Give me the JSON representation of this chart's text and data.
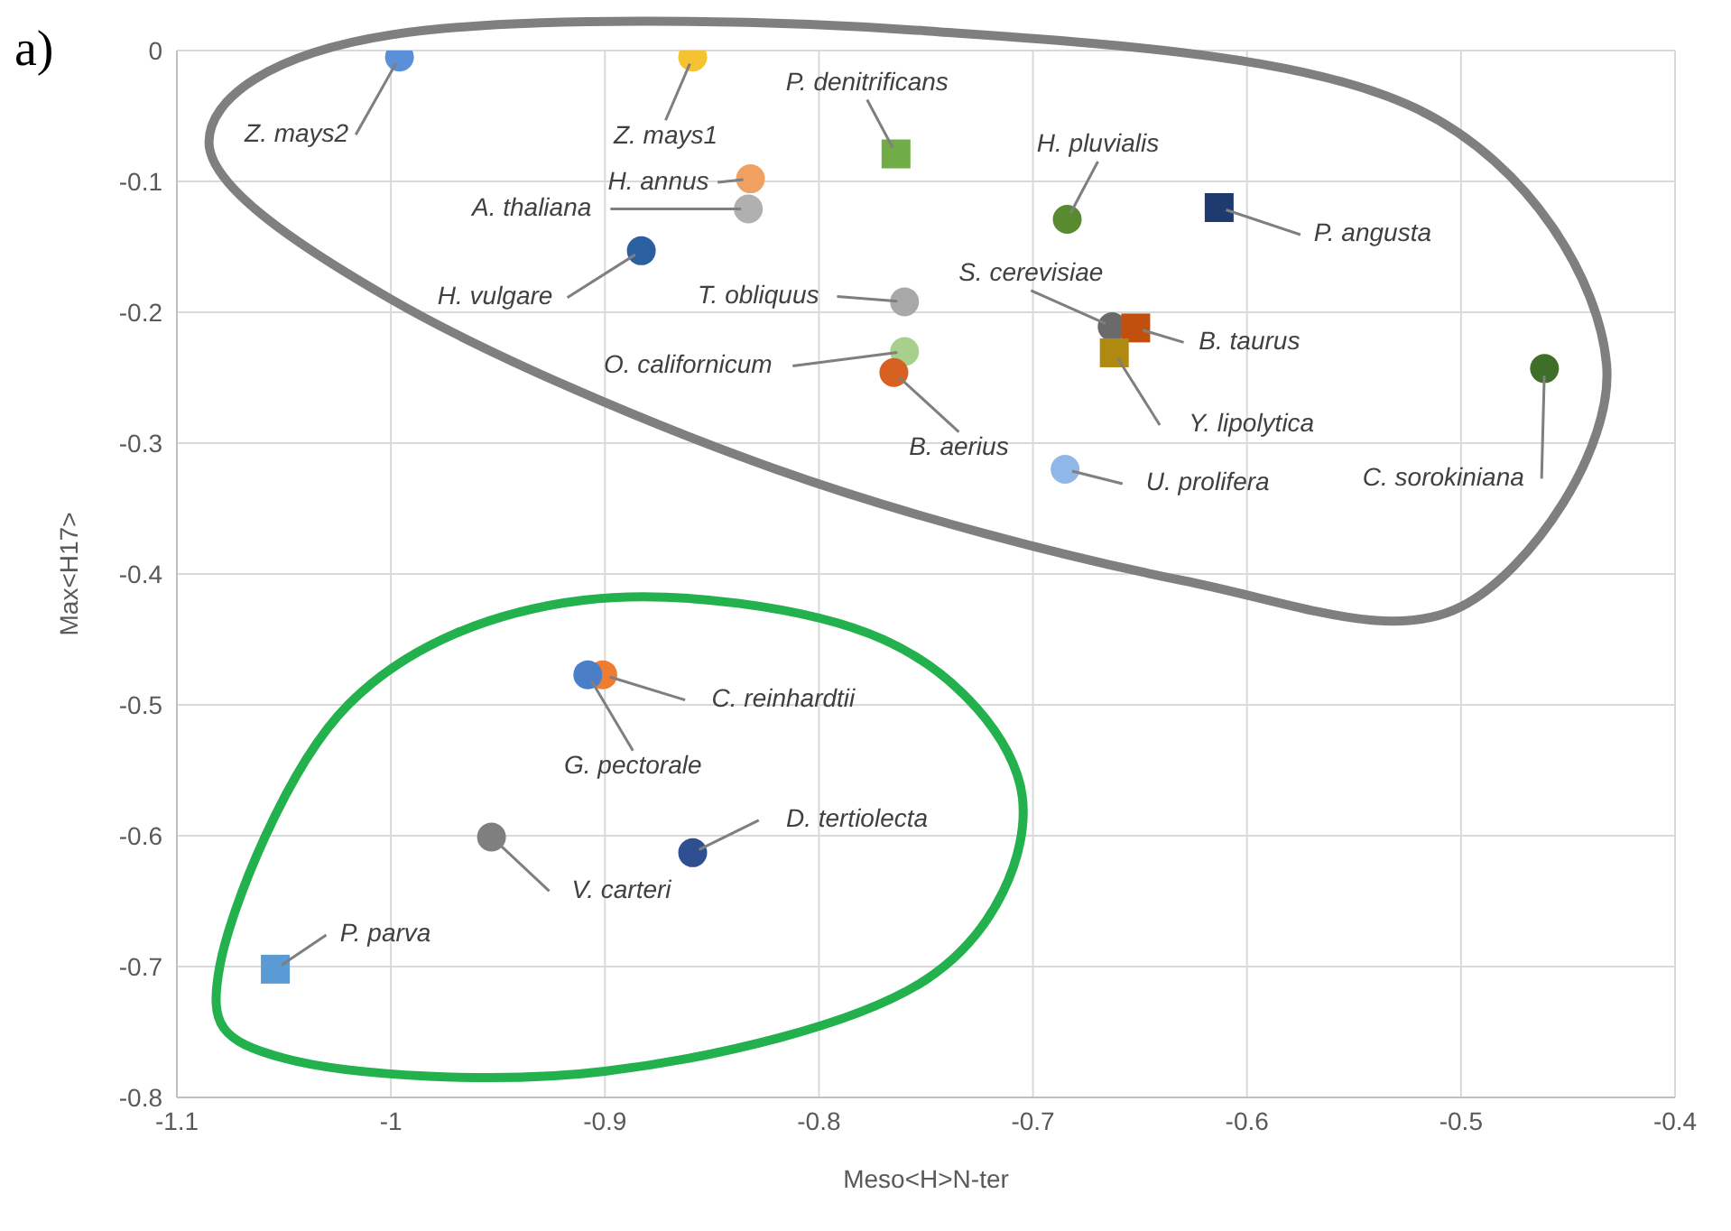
{
  "chart_data": {
    "type": "scatter",
    "title": "a)",
    "xlabel": "Meso<H>N-ter",
    "ylabel": "Max<H17>",
    "xlim": [
      -1.1,
      -0.4
    ],
    "xticks": [
      -1.1,
      -1,
      -0.9,
      -0.8,
      -0.7,
      -0.6,
      -0.5,
      -0.4
    ],
    "ylim": [
      -0.8,
      0
    ],
    "yticks": [
      -0.8,
      -0.7,
      -0.6,
      -0.5,
      -0.4,
      -0.3,
      -0.2,
      -0.1,
      0
    ],
    "grid": true,
    "legend": false,
    "series": [
      {
        "type": "scatter",
        "marker": "circle",
        "x": [
          -0.996,
          -0.859,
          -0.832,
          -0.833,
          -0.684,
          -0.883,
          -0.76,
          -0.663,
          -0.76,
          -0.765,
          -0.461,
          -0.685,
          -0.901,
          -0.908,
          -0.953,
          -0.859
        ],
        "values": [
          -0.005,
          -0.005,
          -0.098,
          -0.121,
          -0.129,
          -0.153,
          -0.192,
          -0.211,
          -0.23,
          -0.246,
          -0.243,
          -0.32,
          -0.477,
          -0.477,
          -0.601,
          -0.613
        ],
        "colors": [
          "#5b8fd8",
          "#f5c230",
          "#f0a060",
          "#b0b0b0",
          "#5a8a30",
          "#2a5fa0",
          "#a8a8a8",
          "#6a6a6a",
          "#a8d08c",
          "#d86020",
          "#3e6e28",
          "#8fb8e8",
          "#ee7d31",
          "#4a7fc8",
          "#7f7f7f",
          "#2e4f90"
        ]
      },
      {
        "type": "scatter",
        "marker": "square",
        "x": [
          -0.764,
          -0.613,
          -0.652,
          -0.662,
          -1.054
        ],
        "values": [
          -0.079,
          -0.12,
          -0.212,
          -0.231,
          -0.702
        ],
        "colors": [
          "#70ad47",
          "#1f3a6e",
          "#c0500c",
          "#b08a10",
          "#5b9bd5"
        ]
      }
    ],
    "annotations": [
      {
        "text": "Z. mays2",
        "x": -0.996,
        "y": -0.005
      },
      {
        "text": "Z. mays1",
        "x": -0.859,
        "y": -0.005
      },
      {
        "text": "P. denitrificans",
        "x": -0.764,
        "y": -0.079
      },
      {
        "text": "H. annus",
        "x": -0.832,
        "y": -0.098
      },
      {
        "text": "A. thaliana",
        "x": -0.833,
        "y": -0.121
      },
      {
        "text": "H. pluvialis",
        "x": -0.684,
        "y": -0.129
      },
      {
        "text": "P. angusta",
        "x": -0.613,
        "y": -0.12
      },
      {
        "text": "H. vulgare",
        "x": -0.883,
        "y": -0.153
      },
      {
        "text": "T. obliquus",
        "x": -0.76,
        "y": -0.192
      },
      {
        "text": "S. cerevisiae",
        "x": -0.663,
        "y": -0.211
      },
      {
        "text": "B. taurus",
        "x": -0.652,
        "y": -0.212
      },
      {
        "text": "O. californicum",
        "x": -0.76,
        "y": -0.23
      },
      {
        "text": "Y. lipolytica",
        "x": -0.662,
        "y": -0.231
      },
      {
        "text": "B. aerius",
        "x": -0.765,
        "y": -0.246
      },
      {
        "text": "C. sorokiniana",
        "x": -0.461,
        "y": -0.243
      },
      {
        "text": "U. prolifera",
        "x": -0.685,
        "y": -0.32
      },
      {
        "text": "C. reinhardtii",
        "x": -0.901,
        "y": -0.477
      },
      {
        "text": "G. pectorale",
        "x": -0.908,
        "y": -0.477
      },
      {
        "text": "V. carteri",
        "x": -0.953,
        "y": -0.601
      },
      {
        "text": "D. tertiolecta",
        "x": -0.859,
        "y": -0.613
      },
      {
        "text": "P. parva",
        "x": -1.054,
        "y": -0.702
      }
    ]
  }
}
